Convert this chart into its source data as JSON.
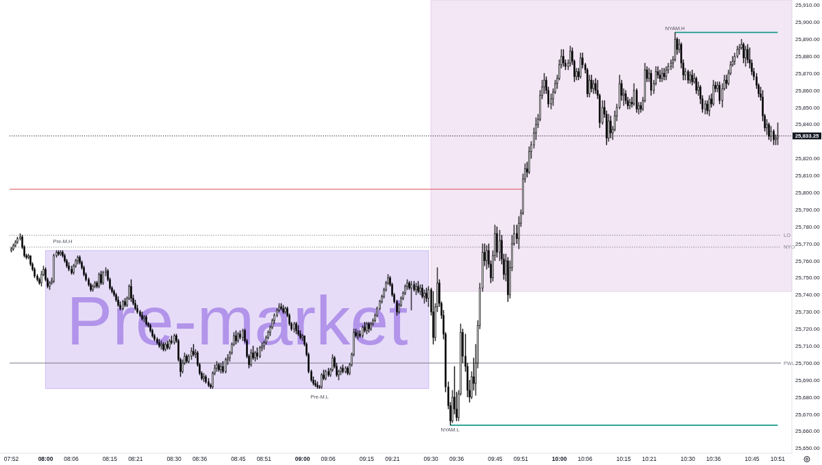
{
  "chart_data": {
    "type": "candlestick",
    "color": "#000000",
    "xlim": [
      7.86,
      10.905
    ],
    "ylim": [
      25647,
      25913
    ],
    "xticks": [
      {
        "value": 7.8667,
        "label": "07:52"
      },
      {
        "value": 8,
        "label": "08:00"
      },
      {
        "value": 8.1,
        "label": "08:06"
      },
      {
        "value": 8.25,
        "label": "08:15"
      },
      {
        "value": 8.35,
        "label": "08:21"
      },
      {
        "value": 8.5,
        "label": "08:30"
      },
      {
        "value": 8.6,
        "label": "08:36"
      },
      {
        "value": 8.75,
        "label": "08:45"
      },
      {
        "value": 8.85,
        "label": "08:51"
      },
      {
        "value": 9,
        "label": "09:00"
      },
      {
        "value": 9.1,
        "label": "09:06"
      },
      {
        "value": 9.25,
        "label": "09:15"
      },
      {
        "value": 9.35,
        "label": "09:21"
      },
      {
        "value": 9.5,
        "label": "09:30"
      },
      {
        "value": 9.6,
        "label": "09:36"
      },
      {
        "value": 9.75,
        "label": "09:45"
      },
      {
        "value": 9.85,
        "label": "09:51"
      },
      {
        "value": 10,
        "label": "10:00"
      },
      {
        "value": 10.1,
        "label": "10:06"
      },
      {
        "value": 10.25,
        "label": "10:15"
      },
      {
        "value": 10.35,
        "label": "10:21"
      },
      {
        "value": 10.5,
        "label": "10:30"
      },
      {
        "value": 10.6,
        "label": "10:36"
      },
      {
        "value": 10.75,
        "label": "10:45"
      },
      {
        "value": 10.85,
        "label": "10:51"
      }
    ],
    "yticks": [
      {
        "value": 25650,
        "label": "25,650.00"
      },
      {
        "value": 25660,
        "label": "25,660.00"
      },
      {
        "value": 25670,
        "label": "25,670.00"
      },
      {
        "value": 25680,
        "label": "25,680.00"
      },
      {
        "value": 25690,
        "label": "25,690.00"
      },
      {
        "value": 25700,
        "label": "25,700.00"
      },
      {
        "value": 25710,
        "label": "25,710.00"
      },
      {
        "value": 25720,
        "label": "25,720.00"
      },
      {
        "value": 25730,
        "label": "25,730.00"
      },
      {
        "value": 25740,
        "label": "25,740.00"
      },
      {
        "value": 25750,
        "label": "25,750.00"
      },
      {
        "value": 25760,
        "label": "25,760.00"
      },
      {
        "value": 25770,
        "label": "25,770.00"
      },
      {
        "value": 25780,
        "label": "25,780.00"
      },
      {
        "value": 25790,
        "label": "25,790.00"
      },
      {
        "value": 25800,
        "label": "25,800.00"
      },
      {
        "value": 25810,
        "label": "25,810.00"
      },
      {
        "value": 25820,
        "label": "25,820.00"
      },
      {
        "value": 25840,
        "label": "25,840.00"
      },
      {
        "value": 25850,
        "label": "25,850.00"
      },
      {
        "value": 25860,
        "label": "25,860.00"
      },
      {
        "value": 25870,
        "label": "25,870.00"
      },
      {
        "value": 25880,
        "label": "25,880.00"
      },
      {
        "value": 25890,
        "label": "25,890.00"
      },
      {
        "value": 25900,
        "label": "25,900.00"
      },
      {
        "value": 25910,
        "label": "25,910.00"
      }
    ],
    "x": [
      7.8667,
      7.875,
      7.8833,
      7.8917,
      7.9,
      7.9083,
      7.9167,
      7.925,
      7.9333,
      7.9417,
      7.95,
      7.9583,
      7.9667,
      7.975,
      7.9833,
      7.9917,
      8,
      8.0083,
      8.0167,
      8.025,
      8.0333,
      8.0417,
      8.05,
      8.0583,
      8.0667,
      8.075,
      8.0833,
      8.0917,
      8.1,
      8.1083,
      8.1167,
      8.125,
      8.1333,
      8.1417,
      8.15,
      8.1583,
      8.1667,
      8.175,
      8.1833,
      8.1917,
      8.2,
      8.2083,
      8.2167,
      8.225,
      8.2333,
      8.2417,
      8.25,
      8.2583,
      8.2667,
      8.275,
      8.2833,
      8.2917,
      8.3,
      8.3083,
      8.3167,
      8.325,
      8.3333,
      8.3417,
      8.35,
      8.3583,
      8.3667,
      8.375,
      8.3833,
      8.3917,
      8.4,
      8.4083,
      8.4167,
      8.425,
      8.4333,
      8.4417,
      8.45,
      8.4583,
      8.4667,
      8.475,
      8.4833,
      8.4917,
      8.5,
      8.5083,
      8.5167,
      8.525,
      8.5333,
      8.5417,
      8.55,
      8.5583,
      8.5667,
      8.575,
      8.5833,
      8.5917,
      8.6,
      8.6083,
      8.6167,
      8.625,
      8.6333,
      8.6417,
      8.65,
      8.6583,
      8.6667,
      8.675,
      8.6833,
      8.6917,
      8.7,
      8.7083,
      8.7167,
      8.725,
      8.7333,
      8.7417,
      8.75,
      8.7583,
      8.7667,
      8.775,
      8.7833,
      8.7917,
      8.8,
      8.8083,
      8.8167,
      8.825,
      8.8333,
      8.8417,
      8.85,
      8.8583,
      8.8667,
      8.875,
      8.8833,
      8.8917,
      8.9,
      8.9083,
      8.9167,
      8.925,
      8.9333,
      8.9417,
      8.95,
      8.9583,
      8.9667,
      8.975,
      8.9833,
      8.9917,
      9,
      9.0083,
      9.0167,
      9.025,
      9.0333,
      9.0417,
      9.05,
      9.0583,
      9.0667,
      9.075,
      9.0833,
      9.0917,
      9.1,
      9.1083,
      9.1167,
      9.125,
      9.1333,
      9.1417,
      9.15,
      9.1583,
      9.1667,
      9.175,
      9.1833,
      9.1917,
      9.2,
      9.2083,
      9.2167,
      9.225,
      9.2333,
      9.2417,
      9.25,
      9.2583,
      9.2667,
      9.275,
      9.2833,
      9.2917,
      9.3,
      9.3083,
      9.3167,
      9.325,
      9.3333,
      9.3417,
      9.35,
      9.3583,
      9.3667,
      9.375,
      9.3833,
      9.3917,
      9.4,
      9.4083,
      9.4167,
      9.425,
      9.4333,
      9.4417,
      9.45,
      9.4583,
      9.4667,
      9.475,
      9.4833,
      9.4917,
      9.5,
      9.5083,
      9.5167,
      9.525,
      9.5333,
      9.5417,
      9.55,
      9.5583,
      9.5667,
      9.575,
      9.5833,
      9.5917,
      9.6,
      9.6083,
      9.6167,
      9.625,
      9.6333,
      9.6417,
      9.65,
      9.6583,
      9.6667,
      9.675,
      9.6833,
      9.6917,
      9.7,
      9.7083,
      9.7167,
      9.725,
      9.7333,
      9.7417,
      9.75,
      9.7583,
      9.7667,
      9.775,
      9.7833,
      9.7917,
      9.8,
      9.8083,
      9.8167,
      9.825,
      9.8333,
      9.8417,
      9.85,
      9.8583,
      9.8667,
      9.875,
      9.8833,
      9.8917,
      9.9,
      9.9083,
      9.9167,
      9.925,
      9.9333,
      9.9417,
      9.95,
      9.9583,
      9.9667,
      9.975,
      9.9833,
      9.9917,
      10,
      10.0083,
      10.0167,
      10.025,
      10.0333,
      10.0417,
      10.05,
      10.0583,
      10.0667,
      10.075,
      10.0833,
      10.0917,
      10.1,
      10.1083,
      10.1167,
      10.125,
      10.1333,
      10.1417,
      10.15,
      10.1583,
      10.1667,
      10.175,
      10.1833,
      10.1917,
      10.2,
      10.2083,
      10.2167,
      10.225,
      10.2333,
      10.2417,
      10.25,
      10.2583,
      10.2667,
      10.275,
      10.2833,
      10.2917,
      10.3,
      10.3083,
      10.3167,
      10.325,
      10.3333,
      10.3417,
      10.35,
      10.3583,
      10.3667,
      10.375,
      10.3833,
      10.3917,
      10.4,
      10.4083,
      10.4167,
      10.425,
      10.4333,
      10.4417,
      10.45,
      10.4583,
      10.4667,
      10.475,
      10.4833,
      10.4917,
      10.5,
      10.5083,
      10.5167,
      10.525,
      10.5333,
      10.5417,
      10.55,
      10.5583,
      10.5667,
      10.575,
      10.5833,
      10.5917,
      10.6,
      10.6083,
      10.6167,
      10.625,
      10.6333,
      10.6417,
      10.65,
      10.6583,
      10.6667,
      10.675,
      10.6833,
      10.6917,
      10.7,
      10.7083,
      10.7167,
      10.725,
      10.7333,
      10.7417,
      10.75,
      10.7583,
      10.7667,
      10.775,
      10.7833,
      10.7917,
      10.8,
      10.8083,
      10.8167,
      10.825,
      10.8333,
      10.8417,
      10.85
    ],
    "ohlc": [
      [
        25766,
        25768,
        25765,
        25767
      ],
      [
        25767,
        25770,
        25766,
        25769
      ],
      [
        25769,
        25772,
        25768,
        25771
      ],
      [
        25771,
        25774,
        25770,
        25773
      ],
      [
        25773,
        25776,
        25772,
        25774
      ],
      [
        25774,
        25775,
        25767,
        25768
      ],
      [
        25768,
        25769,
        25762,
        25763
      ],
      [
        25763,
        25764,
        25761,
        25762
      ],
      [
        25762,
        25764,
        25761,
        25763
      ],
      [
        25763,
        25763,
        25757,
        25758
      ],
      [
        25758,
        25759,
        25754,
        25755
      ],
      [
        25755,
        25756,
        25750,
        25751
      ],
      [
        25751,
        25752,
        25748,
        25749
      ],
      [
        25749,
        25750,
        25746,
        25747
      ],
      [
        25747,
        25754,
        25745,
        25752
      ],
      [
        25752,
        25757,
        25751,
        25755
      ],
      [
        25755,
        25756,
        25748,
        25749
      ],
      [
        25749,
        25750,
        25744,
        25745
      ],
      [
        25745,
        25748,
        25743,
        25747
      ],
      [
        25747,
        25750,
        25746,
        25748
      ],
      [
        25748,
        25764,
        25747,
        25763
      ],
      [
        25763,
        25766,
        25762,
        25765
      ],
      [
        25765,
        25766,
        25763,
        25764
      ],
      [
        25764,
        25766,
        25763,
        25765
      ],
      [
        25765,
        25766,
        25762,
        25763
      ],
      [
        25763,
        25764,
        25759,
        25760
      ],
      [
        25760,
        25761,
        25756,
        25757
      ],
      [
        25757,
        25759,
        25754,
        25755
      ],
      [
        25755,
        25757,
        25752,
        25753
      ],
      [
        25753,
        25758,
        25752,
        25757
      ],
      [
        25757,
        25761,
        25756,
        25760
      ],
      [
        25760,
        25763,
        25758,
        25762
      ],
      [
        25762,
        25763,
        25758,
        25759
      ],
      [
        25759,
        25760,
        25755,
        25756
      ],
      [
        25756,
        25757,
        25751,
        25752
      ],
      [
        25752,
        25753,
        25748,
        25749
      ],
      [
        25749,
        25750,
        25745,
        25746
      ],
      [
        25746,
        25747,
        25742,
        25743
      ],
      [
        25743,
        25746,
        25742,
        25745
      ],
      [
        25745,
        25748,
        25744,
        25747
      ],
      [
        25747,
        25748,
        25744,
        25745
      ],
      [
        25745,
        25753,
        25744,
        25752
      ],
      [
        25752,
        25754,
        25746,
        25747
      ],
      [
        25747,
        25754,
        25746,
        25753
      ],
      [
        25753,
        25756,
        25751,
        25754
      ],
      [
        25754,
        25755,
        25748,
        25749
      ],
      [
        25749,
        25750,
        25743,
        25744
      ],
      [
        25744,
        25745,
        25741,
        25742
      ],
      [
        25742,
        25743,
        25739,
        25740
      ],
      [
        25740,
        25741,
        25736,
        25737
      ],
      [
        25737,
        25739,
        25733,
        25734
      ],
      [
        25734,
        25736,
        25731,
        25732
      ],
      [
        25732,
        25737,
        25731,
        25736
      ],
      [
        25736,
        25738,
        25733,
        25734
      ],
      [
        25734,
        25739,
        25733,
        25738
      ],
      [
        25738,
        25746,
        25737,
        25745
      ],
      [
        25745,
        25749,
        25736,
        25738
      ],
      [
        25738,
        25740,
        25734,
        25735
      ],
      [
        25735,
        25737,
        25731,
        25732
      ],
      [
        25732,
        25734,
        25729,
        25730
      ],
      [
        25730,
        25731,
        25727,
        25728
      ],
      [
        25728,
        25730,
        25725,
        25726
      ],
      [
        25726,
        25728,
        25724,
        25727
      ],
      [
        25727,
        25728,
        25722,
        25723
      ],
      [
        25723,
        25724,
        25721,
        25722
      ],
      [
        25722,
        25723,
        25718,
        25719
      ],
      [
        25719,
        25720,
        25715,
        25716
      ],
      [
        25716,
        25717,
        25713,
        25714
      ],
      [
        25714,
        25715,
        25711,
        25712
      ],
      [
        25712,
        25714,
        25709,
        25710
      ],
      [
        25710,
        25713,
        25708,
        25711
      ],
      [
        25711,
        25712,
        25707,
        25708
      ],
      [
        25708,
        25712,
        25707,
        25711
      ],
      [
        25711,
        25713,
        25708,
        25709
      ],
      [
        25709,
        25714,
        25708,
        25713
      ],
      [
        25713,
        25716,
        25711,
        25712
      ],
      [
        25712,
        25717,
        25711,
        25716
      ],
      [
        25716,
        25717,
        25712,
        25713
      ],
      [
        25713,
        25714,
        25701,
        25702
      ],
      [
        25702,
        25703,
        25692,
        25695
      ],
      [
        25695,
        25702,
        25694,
        25700
      ],
      [
        25700,
        25706,
        25699,
        25704
      ],
      [
        25704,
        25705,
        25700,
        25701
      ],
      [
        25701,
        25705,
        25700,
        25704
      ],
      [
        25704,
        25709,
        25702,
        25707
      ],
      [
        25707,
        25711,
        25704,
        25705
      ],
      [
        25705,
        25708,
        25703,
        25706
      ],
      [
        25706,
        25707,
        25698,
        25699
      ],
      [
        25699,
        25700,
        25693,
        25694
      ],
      [
        25694,
        25695,
        25690,
        25691
      ],
      [
        25691,
        25694,
        25689,
        25692
      ],
      [
        25692,
        25693,
        25688,
        25689
      ],
      [
        25689,
        25691,
        25686,
        25687
      ],
      [
        25687,
        25688,
        25685,
        25686
      ],
      [
        25686,
        25695,
        25685,
        25694
      ],
      [
        25694,
        25699,
        25693,
        25697
      ],
      [
        25697,
        25701,
        25695,
        25699
      ],
      [
        25699,
        25700,
        25695,
        25696
      ],
      [
        25696,
        25700,
        25694,
        25698
      ],
      [
        25698,
        25701,
        25694,
        25695
      ],
      [
        25695,
        25703,
        25694,
        25702
      ],
      [
        25702,
        25705,
        25699,
        25703
      ],
      [
        25703,
        25707,
        25701,
        25706
      ],
      [
        25706,
        25712,
        25705,
        25711
      ],
      [
        25711,
        25718,
        25710,
        25716
      ],
      [
        25716,
        25719,
        25711,
        25713
      ],
      [
        25713,
        25718,
        25712,
        25717
      ],
      [
        25717,
        25719,
        25714,
        25715
      ],
      [
        25715,
        25720,
        25713,
        25719
      ],
      [
        25719,
        25720,
        25712,
        25713
      ],
      [
        25713,
        25714,
        25703,
        25704
      ],
      [
        25704,
        25705,
        25697,
        25699
      ],
      [
        25699,
        25708,
        25698,
        25706
      ],
      [
        25706,
        25710,
        25702,
        25703
      ],
      [
        25703,
        25707,
        25701,
        25706
      ],
      [
        25706,
        25709,
        25702,
        25704
      ],
      [
        25704,
        25710,
        25703,
        25709
      ],
      [
        25709,
        25712,
        25707,
        25710
      ],
      [
        25710,
        25713,
        25708,
        25712
      ],
      [
        25712,
        25716,
        25711,
        25715
      ],
      [
        25715,
        25719,
        25714,
        25718
      ],
      [
        25718,
        25722,
        25716,
        25721
      ],
      [
        25721,
        25726,
        25720,
        25725
      ],
      [
        25725,
        25729,
        25723,
        25728
      ],
      [
        25728,
        25732,
        25727,
        25731
      ],
      [
        25731,
        25735,
        25730,
        25733
      ],
      [
        25733,
        25735,
        25731,
        25732
      ],
      [
        25732,
        25734,
        25729,
        25730
      ],
      [
        25730,
        25733,
        25729,
        25732
      ],
      [
        25732,
        25733,
        25727,
        25728
      ],
      [
        25728,
        25729,
        25722,
        25723
      ],
      [
        25723,
        25724,
        25719,
        25720
      ],
      [
        25720,
        25724,
        25718,
        25723
      ],
      [
        25723,
        25724,
        25717,
        25719
      ],
      [
        25719,
        25722,
        25716,
        25717
      ],
      [
        25717,
        25719,
        25714,
        25715
      ],
      [
        25715,
        25717,
        25713,
        25716
      ],
      [
        25716,
        25716,
        25710,
        25711
      ],
      [
        25711,
        25712,
        25704,
        25705
      ],
      [
        25705,
        25706,
        25694,
        25695
      ],
      [
        25695,
        25696,
        25689,
        25690
      ],
      [
        25690,
        25692,
        25687,
        25688
      ],
      [
        25688,
        25690,
        25686,
        25687
      ],
      [
        25687,
        25689,
        25685,
        25686
      ],
      [
        25686,
        25687,
        25685,
        25686
      ],
      [
        25686,
        25694,
        25685,
        25693
      ],
      [
        25693,
        25696,
        25690,
        25691
      ],
      [
        25691,
        25696,
        25690,
        25695
      ],
      [
        25695,
        25697,
        25692,
        25693
      ],
      [
        25693,
        25697,
        25692,
        25696
      ],
      [
        25696,
        25705,
        25695,
        25703
      ],
      [
        25703,
        25704,
        25697,
        25698
      ],
      [
        25698,
        25700,
        25692,
        25693
      ],
      [
        25693,
        25696,
        25690,
        25695
      ],
      [
        25695,
        25698,
        25693,
        25697
      ],
      [
        25697,
        25699,
        25694,
        25695
      ],
      [
        25695,
        25698,
        25694,
        25697
      ],
      [
        25697,
        25698,
        25693,
        25694
      ],
      [
        25694,
        25700,
        25693,
        25699
      ],
      [
        25699,
        25706,
        25698,
        25705
      ],
      [
        25705,
        25720,
        25704,
        25718
      ],
      [
        25718,
        25720,
        25715,
        25716
      ],
      [
        25716,
        25719,
        25714,
        25717
      ],
      [
        25717,
        25719,
        25715,
        25716
      ],
      [
        25716,
        25722,
        25715,
        25721
      ],
      [
        25721,
        25724,
        25718,
        25719
      ],
      [
        25719,
        25724,
        25717,
        25723
      ],
      [
        25723,
        25724,
        25718,
        25720
      ],
      [
        25720,
        25724,
        25719,
        25723
      ],
      [
        25723,
        25726,
        25722,
        25725
      ],
      [
        25725,
        25729,
        25724,
        25728
      ],
      [
        25728,
        25733,
        25727,
        25732
      ],
      [
        25732,
        25737,
        25731,
        25736
      ],
      [
        25736,
        25740,
        25735,
        25739
      ],
      [
        25739,
        25744,
        25738,
        25743
      ],
      [
        25743,
        25748,
        25742,
        25747
      ],
      [
        25747,
        25752,
        25746,
        25750
      ],
      [
        25750,
        25751,
        25745,
        25746
      ],
      [
        25746,
        25747,
        25739,
        25740
      ],
      [
        25740,
        25741,
        25735,
        25736
      ],
      [
        25736,
        25737,
        25728,
        25730
      ],
      [
        25730,
        25735,
        25729,
        25734
      ],
      [
        25734,
        25739,
        25733,
        25738
      ],
      [
        25738,
        25742,
        25737,
        25741
      ],
      [
        25741,
        25746,
        25740,
        25745
      ],
      [
        25745,
        25749,
        25743,
        25747
      ],
      [
        25747,
        25748,
        25743,
        25744
      ],
      [
        25744,
        25748,
        25731,
        25746
      ],
      [
        25746,
        25748,
        25742,
        25743
      ],
      [
        25743,
        25747,
        25740,
        25745
      ],
      [
        25745,
        25748,
        25741,
        25742
      ],
      [
        25742,
        25746,
        25740,
        25744
      ],
      [
        25744,
        25746,
        25738,
        25739
      ],
      [
        25739,
        25743,
        25735,
        25741
      ],
      [
        25741,
        25744,
        25736,
        25738
      ],
      [
        25738,
        25745,
        25733,
        25743
      ],
      [
        25743,
        25744,
        25728,
        25730
      ],
      [
        25730,
        25742,
        25711,
        25715
      ],
      [
        25715,
        25735,
        25713,
        25733
      ],
      [
        25733,
        25756,
        25730,
        25747
      ],
      [
        25747,
        25749,
        25733,
        25735
      ],
      [
        25735,
        25736,
        25726,
        25728
      ],
      [
        25728,
        25731,
        25714,
        25717
      ],
      [
        25717,
        25718,
        25683,
        25686
      ],
      [
        25686,
        25689,
        25673,
        25675
      ],
      [
        25675,
        25677,
        25663.5,
        25666
      ],
      [
        25666,
        25684,
        25665,
        25680
      ],
      [
        25680,
        25698,
        25670,
        25673
      ],
      [
        25673,
        25683,
        25666,
        25668
      ],
      [
        25668,
        25684,
        25666,
        25682
      ],
      [
        25682,
        25723,
        25681,
        25718
      ],
      [
        25718,
        25720,
        25700,
        25704
      ],
      [
        25704,
        25717,
        25695,
        25698
      ],
      [
        25698,
        25700,
        25680,
        25684
      ],
      [
        25684,
        25690,
        25677,
        25680
      ],
      [
        25680,
        25695,
        25679,
        25692
      ],
      [
        25692,
        25703,
        25684,
        25688
      ],
      [
        25688,
        25711,
        25681,
        25700
      ],
      [
        25700,
        25725,
        25697,
        25722
      ],
      [
        25722,
        25747,
        25720,
        25744
      ],
      [
        25744,
        25770,
        25742,
        25765
      ],
      [
        25765,
        25770,
        25757,
        25760
      ],
      [
        25760,
        25769,
        25755,
        25766
      ],
      [
        25766,
        25770,
        25756,
        25758
      ],
      [
        25758,
        25760,
        25747,
        25750
      ],
      [
        25750,
        25766,
        25748,
        25763
      ],
      [
        25763,
        25781,
        25760,
        25776
      ],
      [
        25776,
        25780,
        25762,
        25765
      ],
      [
        25765,
        25778,
        25760,
        25772
      ],
      [
        25772,
        25775,
        25758,
        25761
      ],
      [
        25761,
        25764,
        25749,
        25752
      ],
      [
        25752,
        25764,
        25748,
        25760
      ],
      [
        25760,
        25762,
        25736,
        25740
      ],
      [
        25740,
        25760,
        25738,
        25756
      ],
      [
        25756,
        25775,
        25754,
        25770
      ],
      [
        25770,
        25781,
        25769,
        25776
      ],
      [
        25776,
        25781,
        25770,
        25773
      ],
      [
        25773,
        25786,
        25767,
        25782
      ],
      [
        25782,
        25790,
        25780,
        25788
      ],
      [
        25788,
        25811,
        25787,
        25808
      ],
      [
        25808,
        25817,
        25806,
        25814
      ],
      [
        25814,
        25818,
        25809,
        25812
      ],
      [
        25812,
        25827,
        25811,
        25824
      ],
      [
        25824,
        25830,
        25820,
        25828
      ],
      [
        25828,
        25838,
        25826,
        25835
      ],
      [
        25835,
        25844,
        25831,
        25840
      ],
      [
        25840,
        25846,
        25838,
        25843
      ],
      [
        25843,
        25860,
        25842,
        25857
      ],
      [
        25857,
        25866,
        25855,
        25862
      ],
      [
        25862,
        25870,
        25858,
        25866
      ],
      [
        25866,
        25868,
        25858,
        25860
      ],
      [
        25860,
        25862,
        25850,
        25852
      ],
      [
        25852,
        25858,
        25849,
        25855
      ],
      [
        25855,
        25861,
        25851,
        25859
      ],
      [
        25859,
        25866,
        25858,
        25864
      ],
      [
        25864,
        25869,
        25861,
        25867
      ],
      [
        25867,
        25878,
        25866,
        25875
      ],
      [
        25875,
        25884,
        25873,
        25880
      ],
      [
        25880,
        25884,
        25874,
        25876
      ],
      [
        25876,
        25878,
        25872,
        25874
      ],
      [
        25874,
        25878,
        25872,
        25876
      ],
      [
        25876,
        25886,
        25874,
        25883
      ],
      [
        25883,
        25885,
        25875,
        25877
      ],
      [
        25877,
        25878,
        25865,
        25868
      ],
      [
        25868,
        25873,
        25866,
        25871
      ],
      [
        25871,
        25873,
        25866,
        25868
      ],
      [
        25868,
        25882,
        25867,
        25879
      ],
      [
        25879,
        25882,
        25873,
        25875
      ],
      [
        25875,
        25876,
        25870,
        25872
      ],
      [
        25872,
        25873,
        25856,
        25858
      ],
      [
        25858,
        25869,
        25856,
        25866
      ],
      [
        25866,
        25869,
        25859,
        25861
      ],
      [
        25861,
        25866,
        25858,
        25864
      ],
      [
        25864,
        25867,
        25858,
        25860
      ],
      [
        25860,
        25866,
        25855,
        25857
      ],
      [
        25857,
        25858,
        25838,
        25841
      ],
      [
        25841,
        25854,
        25840,
        25850
      ],
      [
        25850,
        25854,
        25844,
        25846
      ],
      [
        25846,
        25848,
        25828,
        25832
      ],
      [
        25832,
        25846,
        25830,
        25842
      ],
      [
        25842,
        25845,
        25832,
        25835
      ],
      [
        25835,
        25839,
        25831,
        25837
      ],
      [
        25837,
        25848,
        25836,
        25845
      ],
      [
        25845,
        25852,
        25842,
        25850
      ],
      [
        25850,
        25869,
        25849,
        25864
      ],
      [
        25864,
        25866,
        25854,
        25857
      ],
      [
        25857,
        25861,
        25851,
        25858
      ],
      [
        25858,
        25860,
        25852,
        25854
      ],
      [
        25854,
        25856,
        25849,
        25851
      ],
      [
        25851,
        25855,
        25849,
        25853
      ],
      [
        25853,
        25856,
        25850,
        25852
      ],
      [
        25852,
        25864,
        25851,
        25860
      ],
      [
        25860,
        25861,
        25847,
        25849
      ],
      [
        25849,
        25853,
        25846,
        25851
      ],
      [
        25851,
        25853,
        25847,
        25849
      ],
      [
        25849,
        25856,
        25848,
        25854
      ],
      [
        25854,
        25876,
        25853,
        25872
      ],
      [
        25872,
        25874,
        25865,
        25867
      ],
      [
        25867,
        25873,
        25865,
        25870
      ],
      [
        25870,
        25872,
        25857,
        25860
      ],
      [
        25860,
        25866,
        25858,
        25864
      ],
      [
        25864,
        25874,
        25863,
        25871
      ],
      [
        25871,
        25874,
        25867,
        25869
      ],
      [
        25869,
        25872,
        25865,
        25867
      ],
      [
        25867,
        25873,
        25865,
        25870
      ],
      [
        25870,
        25873,
        25866,
        25868
      ],
      [
        25868,
        25874,
        25866,
        25872
      ],
      [
        25872,
        25876,
        25870,
        25874
      ],
      [
        25874,
        25878,
        25872,
        25876
      ],
      [
        25876,
        25880,
        25873,
        25878
      ],
      [
        25878,
        25894,
        25877,
        25890
      ],
      [
        25890,
        25891,
        25881,
        25884
      ],
      [
        25884,
        25890,
        25882,
        25887
      ],
      [
        25887,
        25888,
        25873,
        25876
      ],
      [
        25876,
        25878,
        25866,
        25869
      ],
      [
        25869,
        25873,
        25866,
        25871
      ],
      [
        25871,
        25872,
        25864,
        25866
      ],
      [
        25866,
        25871,
        25864,
        25869
      ],
      [
        25869,
        25872,
        25863,
        25865
      ],
      [
        25865,
        25870,
        25864,
        25867
      ],
      [
        25867,
        25868,
        25858,
        25860
      ],
      [
        25860,
        25865,
        25857,
        25862
      ],
      [
        25862,
        25863,
        25852,
        25855
      ],
      [
        25855,
        25857,
        25847,
        25849
      ],
      [
        25849,
        25854,
        25846,
        25852
      ],
      [
        25852,
        25854,
        25846,
        25848
      ],
      [
        25848,
        25857,
        25845,
        25855
      ],
      [
        25855,
        25858,
        25850,
        25852
      ],
      [
        25852,
        25866,
        25851,
        25863
      ],
      [
        25863,
        25865,
        25859,
        25861
      ],
      [
        25861,
        25865,
        25859,
        25863
      ],
      [
        25863,
        25865,
        25852,
        25854
      ],
      [
        25854,
        25864,
        25850,
        25861
      ],
      [
        25861,
        25869,
        25860,
        25866
      ],
      [
        25866,
        25869,
        25861,
        25864
      ],
      [
        25864,
        25872,
        25863,
        25870
      ],
      [
        25870,
        25877,
        25869,
        25875
      ],
      [
        25875,
        25880,
        25874,
        25877
      ],
      [
        25877,
        25882,
        25875,
        25880
      ],
      [
        25880,
        25886,
        25879,
        25884
      ],
      [
        25884,
        25887,
        25881,
        25885
      ],
      [
        25885,
        25890,
        25884,
        25887
      ],
      [
        25887,
        25888,
        25876,
        25879
      ],
      [
        25879,
        25886,
        25874,
        25884
      ],
      [
        25884,
        25887,
        25876,
        25878
      ],
      [
        25878,
        25885,
        25873,
        25876
      ],
      [
        25876,
        25878,
        25869,
        25871
      ],
      [
        25871,
        25873,
        25866,
        25868
      ],
      [
        25868,
        25870,
        25861,
        25863
      ],
      [
        25863,
        25864,
        25856,
        25858
      ],
      [
        25858,
        25862,
        25854,
        25856
      ],
      [
        25856,
        25860,
        25842,
        25845
      ],
      [
        25845,
        25846,
        25836,
        25838
      ],
      [
        25838,
        25843,
        25834,
        25840
      ],
      [
        25840,
        25841,
        25831,
        25833
      ],
      [
        25833,
        25839,
        25830,
        25836
      ],
      [
        25836,
        25837,
        25828,
        25831
      ],
      [
        25831,
        25834,
        25828,
        25832
      ],
      [
        25832,
        25841,
        25828,
        25833.25
      ]
    ],
    "series": [
      {
        "type": "area",
        "name": "Pre-market",
        "color": "#b294ea",
        "x": [
          8,
          9.4917
        ],
        "values": [
          null,
          null
        ],
        "upper": [
          25766,
          25766
        ],
        "lower": [
          25685,
          25685
        ]
      },
      {
        "type": "area",
        "color": "#dbb3e1",
        "x": [
          9.5,
          10.905
        ],
        "values": [
          null,
          null
        ],
        "upper": [
          25913,
          25913
        ],
        "lower": [
          25742,
          25742
        ]
      },
      {
        "type": "line",
        "color": "#d94f4f",
        "x": [
          7.86,
          9.8583
        ],
        "values": [
          25802,
          25802
        ]
      },
      {
        "type": "line",
        "name": "NYAM.H",
        "color": "#15998a",
        "x": [
          10.45,
          10.85
        ],
        "values": [
          25894,
          25894
        ]
      },
      {
        "type": "line",
        "name": "NYAM.L",
        "color": "#15998a",
        "x": [
          9.575,
          10.85
        ],
        "values": [
          25663.5,
          25663.5
        ]
      }
    ],
    "ref_lines": [
      {
        "axis": "y",
        "value": 25833.25,
        "label": "25,833.25",
        "color": "#131722",
        "line_style": "dotted"
      },
      {
        "axis": "y",
        "value": 25775,
        "label": "LO",
        "color": "#787b86",
        "line_style": "dotted"
      },
      {
        "axis": "y",
        "value": 25768,
        "label": "NYO",
        "color": "#787b86",
        "line_style": "dotted"
      },
      {
        "axis": "y",
        "value": 25700,
        "label": "PWL",
        "color": "#787b86",
        "line_style": "solid"
      }
    ],
    "annotations": [
      {
        "text": "Pre-M.H",
        "x": 8.0667,
        "y": 25766
      },
      {
        "text": "Pre-M.L",
        "x": 9.0667,
        "y": 25685
      }
    ]
  }
}
